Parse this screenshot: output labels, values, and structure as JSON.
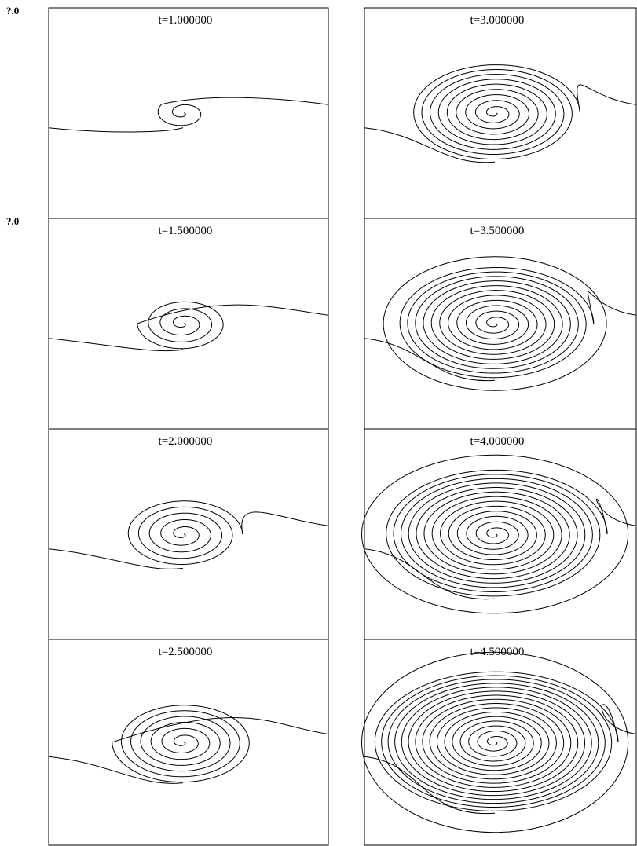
{
  "figure": {
    "edge_labels": [
      "?.0",
      "?.0"
    ],
    "panels": [
      {
        "label": "t=1.000000",
        "t": 1.0,
        "turns": 1.6,
        "spread": 0.18,
        "tail": 0.0
      },
      {
        "label": "t=1.500000",
        "t": 1.5,
        "turns": 3.5,
        "spread": 0.32,
        "tail": 0.0
      },
      {
        "label": "t=2.000000",
        "t": 2.0,
        "turns": 5.0,
        "spread": 0.42,
        "tail": 0.0
      },
      {
        "label": "t=2.500000",
        "t": 2.5,
        "turns": 6.5,
        "spread": 0.5,
        "tail": 0.0
      },
      {
        "label": "t=3.000000",
        "t": 3.0,
        "turns": 9.0,
        "spread": 0.62,
        "tail": 0.0
      },
      {
        "label": "t=3.500000",
        "t": 3.5,
        "turns": 11.0,
        "spread": 0.72,
        "tail": 0.1
      },
      {
        "label": "t=4.000000",
        "t": 4.0,
        "turns": 13.0,
        "spread": 0.82,
        "tail": 0.25
      },
      {
        "label": "t=4.500000",
        "t": 4.5,
        "turns": 16.0,
        "spread": 0.9,
        "tail": 0.4
      }
    ],
    "stroke_color": "#000000"
  }
}
